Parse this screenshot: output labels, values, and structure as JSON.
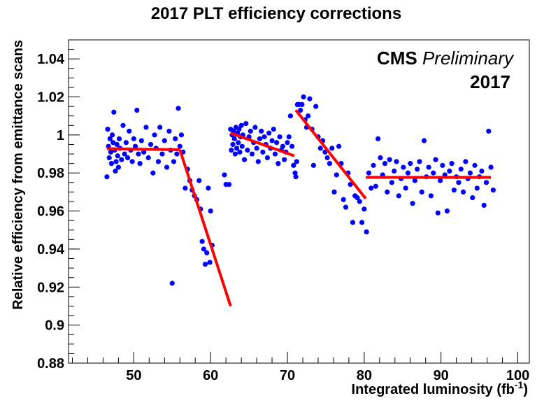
{
  "chart_data": {
    "type": "scatter",
    "title": "2017 PLT efficiency corrections",
    "xlabel": "Integrated luminosity (fb",
    "xlabel_sup": "-1",
    "xlabel_end": ")",
    "ylabel": "Relative efficiency from emittance scans",
    "xlim": [
      41.5,
      101.5
    ],
    "ylim": [
      0.88,
      1.05
    ],
    "x_ticks": [
      50,
      60,
      70,
      80,
      90,
      100
    ],
    "y_ticks": [
      0.88,
      0.9,
      0.92,
      0.94,
      0.96,
      0.98,
      1,
      1.02,
      1.04
    ],
    "y_tick_labels": [
      "0.88",
      "0.9",
      "0.92",
      "0.94",
      "0.96",
      "0.98",
      "1",
      "1.02",
      "1.04"
    ],
    "grid": false,
    "legend": "none",
    "annotations": {
      "cms": "CMS",
      "preliminary": "Preliminary",
      "year": "2017"
    },
    "colors": {
      "points": "#0000ff",
      "fit": "#ff0000"
    },
    "points": [
      [
        46.5,
        0.978
      ],
      [
        46.6,
        1.003
      ],
      [
        46.7,
        0.994
      ],
      [
        46.8,
        0.988
      ],
      [
        46.9,
        0.998
      ],
      [
        47.0,
        0.991
      ],
      [
        47.1,
        0.985
      ],
      [
        47.2,
        1.0
      ],
      [
        47.3,
        0.996
      ],
      [
        47.4,
        1.012
      ],
      [
        47.5,
        0.992
      ],
      [
        47.6,
        0.981
      ],
      [
        47.7,
        0.986
      ],
      [
        47.8,
        0.995
      ],
      [
        47.9,
        0.989
      ],
      [
        48.0,
        0.983
      ],
      [
        48.1,
        0.998
      ],
      [
        48.2,
        0.993
      ],
      [
        48.4,
        0.987
      ],
      [
        48.6,
        1.005
      ],
      [
        48.8,
        0.99
      ],
      [
        49.0,
        0.996
      ],
      [
        49.2,
        0.988
      ],
      [
        49.4,
        1.002
      ],
      [
        49.6,
        0.992
      ],
      [
        49.8,
        0.986
      ],
      [
        50.0,
        0.998
      ],
      [
        50.2,
        0.994
      ],
      [
        50.4,
        1.013
      ],
      [
        50.6,
        0.99
      ],
      [
        50.8,
        0.985
      ],
      [
        51.0,
        0.997
      ],
      [
        51.3,
        0.991
      ],
      [
        51.6,
        1.004
      ],
      [
        51.9,
        0.988
      ],
      [
        52.2,
        0.995
      ],
      [
        52.5,
        0.98
      ],
      [
        52.7,
        1.0
      ],
      [
        52.9,
        0.993
      ],
      [
        53.2,
        0.986
      ],
      [
        53.4,
        1.004
      ],
      [
        53.7,
        0.99
      ],
      [
        54.0,
        0.997
      ],
      [
        54.3,
        0.983
      ],
      [
        54.6,
        1.002
      ],
      [
        54.8,
        0.992
      ],
      [
        55.0,
        0.922
      ],
      [
        55.2,
        0.986
      ],
      [
        55.4,
        0.998
      ],
      [
        55.6,
        0.99
      ],
      [
        55.8,
        1.014
      ],
      [
        56.0,
        0.994
      ],
      [
        56.2,
        1.0
      ],
      [
        56.4,
        0.991
      ],
      [
        56.7,
        0.972
      ],
      [
        57.0,
        0.982
      ],
      [
        57.3,
        0.976
      ],
      [
        57.6,
        0.971
      ],
      [
        57.9,
        0.968
      ],
      [
        58.2,
        0.966
      ],
      [
        58.5,
        0.976
      ],
      [
        58.7,
        0.961
      ],
      [
        58.9,
        0.944
      ],
      [
        59.1,
        0.94
      ],
      [
        59.3,
        0.932
      ],
      [
        59.5,
        0.938
      ],
      [
        59.7,
        0.972
      ],
      [
        59.9,
        0.933
      ],
      [
        60.0,
        0.96
      ],
      [
        60.2,
        0.942
      ],
      [
        61.8,
        0.979
      ],
      [
        62.0,
        0.974
      ],
      [
        62.4,
        0.974
      ],
      [
        62.6,
        1.003
      ],
      [
        62.7,
        0.992
      ],
      [
        62.8,
        1.0
      ],
      [
        62.9,
        0.995
      ],
      [
        63.0,
        1.002
      ],
      [
        63.1,
        0.998
      ],
      [
        63.2,
        0.99
      ],
      [
        63.3,
        1.004
      ],
      [
        63.4,
        0.993
      ],
      [
        63.5,
        1.001
      ],
      [
        63.6,
        0.996
      ],
      [
        63.7,
        1.003
      ],
      [
        63.8,
        0.991
      ],
      [
        63.9,
        0.999
      ],
      [
        64.0,
        1.005
      ],
      [
        64.1,
        0.994
      ],
      [
        64.2,
        1.0
      ],
      [
        64.4,
        0.987
      ],
      [
        64.6,
        1.006
      ],
      [
        64.8,
        0.992
      ],
      [
        65.0,
        0.999
      ],
      [
        65.2,
        1.002
      ],
      [
        65.4,
        0.99
      ],
      [
        65.6,
        0.996
      ],
      [
        65.8,
        1.004
      ],
      [
        66.0,
        0.993
      ],
      [
        66.2,
        0.986
      ],
      [
        66.4,
        0.998
      ],
      [
        66.6,
        1.002
      ],
      [
        66.8,
        0.991
      ],
      [
        67.0,
        0.999
      ],
      [
        67.2,
        0.995
      ],
      [
        67.4,
        0.988
      ],
      [
        67.6,
        1.001
      ],
      [
        67.8,
        0.993
      ],
      [
        68.0,
        0.997
      ],
      [
        68.2,
        1.003
      ],
      [
        68.4,
        0.99
      ],
      [
        68.6,
        0.996
      ],
      [
        68.8,
        0.985
      ],
      [
        69.0,
        0.999
      ],
      [
        69.2,
        0.992
      ],
      [
        69.4,
        0.994
      ],
      [
        69.6,
        0.987
      ],
      [
        69.8,
        0.991
      ],
      [
        70.0,
        0.996
      ],
      [
        70.2,
        0.999
      ],
      [
        70.4,
        1.01
      ],
      [
        70.6,
        0.994
      ],
      [
        70.8,
        0.984
      ],
      [
        71.0,
        0.98
      ],
      [
        71.1,
        0.978
      ],
      [
        71.2,
        0.986
      ],
      [
        71.3,
        1.016
      ],
      [
        71.5,
        1.016
      ],
      [
        71.7,
        1.013
      ],
      [
        71.9,
        1.016
      ],
      [
        72.1,
        1.02
      ],
      [
        72.3,
        1.008
      ],
      [
        72.5,
        1.004
      ],
      [
        72.7,
        1.01
      ],
      [
        72.9,
        1.019
      ],
      [
        73.2,
        1.003
      ],
      [
        73.4,
        0.984
      ],
      [
        73.7,
        1.015
      ],
      [
        74.0,
        0.999
      ],
      [
        74.3,
        0.993
      ],
      [
        74.6,
        0.997
      ],
      [
        74.9,
        0.991
      ],
      [
        75.2,
        0.988
      ],
      [
        75.5,
        0.985
      ],
      [
        75.8,
        0.993
      ],
      [
        76.1,
        0.97
      ],
      [
        76.4,
        0.979
      ],
      [
        76.7,
        0.994
      ],
      [
        77.0,
        0.985
      ],
      [
        77.3,
        0.966
      ],
      [
        77.6,
        0.962
      ],
      [
        77.9,
        0.98
      ],
      [
        78.2,
        0.974
      ],
      [
        78.5,
        0.954
      ],
      [
        78.8,
        0.968
      ],
      [
        79.1,
        0.967
      ],
      [
        79.4,
        0.965
      ],
      [
        79.7,
        0.954
      ],
      [
        80.0,
        0.961
      ],
      [
        80.3,
        0.949
      ],
      [
        80.6,
        0.98
      ],
      [
        80.9,
        0.972
      ],
      [
        81.2,
        0.984
      ],
      [
        81.5,
        0.973
      ],
      [
        81.8,
        0.998
      ],
      [
        82.1,
        0.988
      ],
      [
        82.4,
        0.979
      ],
      [
        82.7,
        0.985
      ],
      [
        83.0,
        0.97
      ],
      [
        83.3,
        0.987
      ],
      [
        83.6,
        0.975
      ],
      [
        83.9,
        0.981
      ],
      [
        84.2,
        0.986
      ],
      [
        84.5,
        0.968
      ],
      [
        84.8,
        0.977
      ],
      [
        85.1,
        0.983
      ],
      [
        85.4,
        0.972
      ],
      [
        85.7,
        0.98
      ],
      [
        86.0,
        0.985
      ],
      [
        86.3,
        0.964
      ],
      [
        86.6,
        0.976
      ],
      [
        86.9,
        0.982
      ],
      [
        87.2,
        0.986
      ],
      [
        87.5,
        0.97
      ],
      [
        87.8,
        0.997
      ],
      [
        88.1,
        0.978
      ],
      [
        88.4,
        0.983
      ],
      [
        88.7,
        0.968
      ],
      [
        89.0,
        0.98
      ],
      [
        89.3,
        0.987
      ],
      [
        89.6,
        0.959
      ],
      [
        89.9,
        0.976
      ],
      [
        90.2,
        0.984
      ],
      [
        90.5,
        0.979
      ],
      [
        90.8,
        0.96
      ],
      [
        91.1,
        0.981
      ],
      [
        91.4,
        0.985
      ],
      [
        91.7,
        0.971
      ],
      [
        92.0,
        0.978
      ],
      [
        92.3,
        0.975
      ],
      [
        92.6,
        0.982
      ],
      [
        92.9,
        0.97
      ],
      [
        93.2,
        0.986
      ],
      [
        93.5,
        0.977
      ],
      [
        93.8,
        0.98
      ],
      [
        94.1,
        0.967
      ],
      [
        94.4,
        0.984
      ],
      [
        94.7,
        0.972
      ],
      [
        95.0,
        0.978
      ],
      [
        95.3,
        0.981
      ],
      [
        95.6,
        0.963
      ],
      [
        95.9,
        0.975
      ],
      [
        96.2,
        1.002
      ],
      [
        96.5,
        0.983
      ],
      [
        96.8,
        0.971
      ]
    ],
    "fit_lines": [
      {
        "x": [
          46.5,
          56.0
        ],
        "y": [
          0.9928,
          0.9922
        ]
      },
      {
        "x": [
          56.0,
          62.6
        ],
        "y": [
          0.9922,
          0.91
        ]
      },
      {
        "x": [
          62.6,
          70.9
        ],
        "y": [
          1.001,
          0.989
        ]
      },
      {
        "x": [
          71.1,
          80.2
        ],
        "y": [
          1.013,
          0.9665
        ]
      },
      {
        "x": [
          80.2,
          96.5
        ],
        "y": [
          0.9777,
          0.9777
        ]
      }
    ]
  }
}
